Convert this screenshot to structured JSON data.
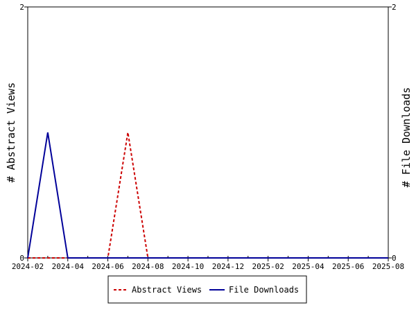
{
  "chart_data": {
    "type": "line",
    "x": [
      "2024-02",
      "2024-03",
      "2024-04",
      "2024-05",
      "2024-06",
      "2024-07",
      "2024-08",
      "2024-09",
      "2024-10",
      "2024-11",
      "2024-12",
      "2025-01",
      "2025-02",
      "2025-03",
      "2025-04",
      "2025-05",
      "2025-06",
      "2025-07",
      "2025-08"
    ],
    "x_tick_labels": [
      "2024-02",
      "2024-04",
      "2024-06",
      "2024-08",
      "2024-10",
      "2024-12",
      "2025-02",
      "2025-04",
      "2025-06",
      "2025-08"
    ],
    "y_left_label": "# Abstract Views",
    "y_right_label": "# File Downloads",
    "y_left_ticks": [
      "0",
      "2"
    ],
    "y_right_ticks": [
      "0",
      "2"
    ],
    "ylim": [
      0,
      2
    ],
    "y2lim": [
      0,
      2
    ],
    "grid": false,
    "legend_position": "bottom",
    "series": [
      {
        "name": "Abstract Views",
        "axis": "left",
        "color": "#cc0000",
        "style": "dashed",
        "values": [
          0,
          0,
          0,
          0,
          0,
          1,
          0,
          0,
          0,
          0,
          0,
          0,
          0,
          0,
          0,
          0,
          0,
          0,
          0
        ]
      },
      {
        "name": "File Downloads",
        "axis": "right",
        "color": "#000099",
        "style": "solid",
        "values": [
          0,
          1,
          0,
          0,
          0,
          0,
          0,
          0,
          0,
          0,
          0,
          0,
          0,
          0,
          0,
          0,
          0,
          0,
          0
        ]
      }
    ]
  }
}
